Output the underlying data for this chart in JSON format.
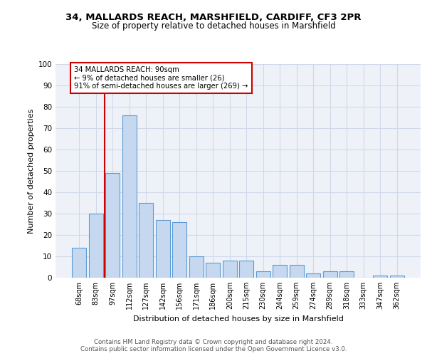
{
  "title1": "34, MALLARDS REACH, MARSHFIELD, CARDIFF, CF3 2PR",
  "title2": "Size of property relative to detached houses in Marshfield",
  "xlabel": "Distribution of detached houses by size in Marshfield",
  "ylabel": "Number of detached properties",
  "categories": [
    "68sqm",
    "83sqm",
    "97sqm",
    "112sqm",
    "127sqm",
    "142sqm",
    "156sqm",
    "171sqm",
    "186sqm",
    "200sqm",
    "215sqm",
    "230sqm",
    "244sqm",
    "259sqm",
    "274sqm",
    "289sqm",
    "318sqm",
    "333sqm",
    "347sqm",
    "362sqm"
  ],
  "values": [
    14,
    30,
    49,
    76,
    35,
    27,
    26,
    10,
    7,
    8,
    8,
    3,
    6,
    6,
    2,
    3,
    3,
    0,
    1,
    1
  ],
  "bar_color": "#c5d8f0",
  "bar_edge_color": "#5b9bd5",
  "grid_color": "#d0d8e8",
  "background_color": "#eef2f8",
  "annotation_text_line1": "34 MALLARDS REACH: 90sqm",
  "annotation_text_line2": "← 9% of detached houses are smaller (26)",
  "annotation_text_line3": "91% of semi-detached houses are larger (269) →",
  "annotation_box_color": "#ffffff",
  "annotation_border_color": "#cc0000",
  "vline_color": "#cc0000",
  "footer1": "Contains HM Land Registry data © Crown copyright and database right 2024.",
  "footer2": "Contains public sector information licensed under the Open Government Licence v3.0.",
  "ylim": [
    0,
    100
  ],
  "yticks": [
    0,
    10,
    20,
    30,
    40,
    50,
    60,
    70,
    80,
    90,
    100
  ]
}
